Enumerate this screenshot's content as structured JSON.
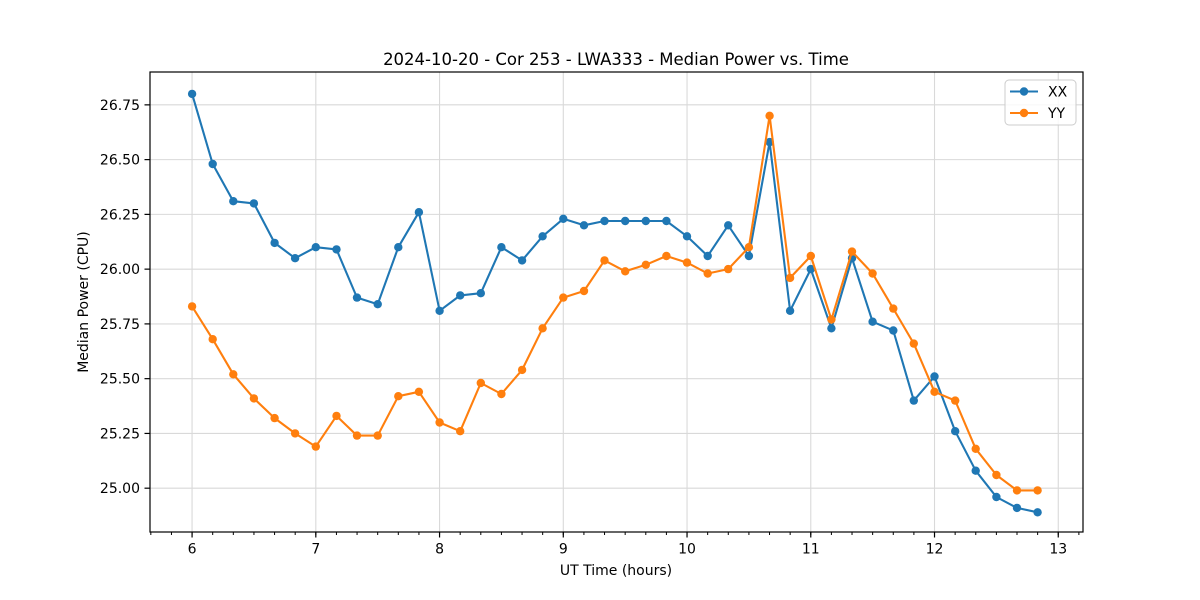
{
  "chart_data": {
    "type": "line",
    "title": "2024-10-20 - Cor 253 - LWA333 - Median Power vs. Time",
    "xlabel": "UT Time (hours)",
    "ylabel": "Median Power (CPU)",
    "xlim": [
      5.66,
      13.2
    ],
    "ylim": [
      24.8,
      26.9
    ],
    "xticks": [
      6,
      7,
      8,
      9,
      10,
      11,
      12,
      13
    ],
    "yticks": [
      25.0,
      25.25,
      25.5,
      25.75,
      26.0,
      26.25,
      26.5,
      26.75
    ],
    "ytick_decimals": 2,
    "minor_xtick_step_hours": 0.166667,
    "grid": true,
    "legend_position": "upper right",
    "x": [
      6.0,
      6.167,
      6.333,
      6.5,
      6.667,
      6.833,
      7.0,
      7.167,
      7.333,
      7.5,
      7.667,
      7.833,
      8.0,
      8.167,
      8.333,
      8.5,
      8.667,
      8.833,
      9.0,
      9.167,
      9.333,
      9.5,
      9.667,
      9.833,
      10.0,
      10.167,
      10.333,
      10.5,
      10.667,
      10.833,
      11.0,
      11.167,
      11.333,
      11.5,
      11.667,
      11.833,
      12.0,
      12.167,
      12.333,
      12.5,
      12.667,
      12.833
    ],
    "series": [
      {
        "name": "XX",
        "color": "#1f77b4",
        "values": [
          26.8,
          26.48,
          26.31,
          26.3,
          26.12,
          26.05,
          26.1,
          26.09,
          25.87,
          25.84,
          26.1,
          26.26,
          25.81,
          25.88,
          25.89,
          26.1,
          26.04,
          26.15,
          26.23,
          26.2,
          26.22,
          26.22,
          26.22,
          26.22,
          26.15,
          26.06,
          26.2,
          26.06,
          26.58,
          25.81,
          26.0,
          25.73,
          26.05,
          25.76,
          25.72,
          25.4,
          25.51,
          25.26,
          25.08,
          24.96,
          24.91,
          24.89
        ]
      },
      {
        "name": "YY",
        "color": "#ff7f0e",
        "values": [
          25.83,
          25.68,
          25.52,
          25.41,
          25.32,
          25.25,
          25.19,
          25.33,
          25.24,
          25.24,
          25.42,
          25.44,
          25.3,
          25.26,
          25.48,
          25.43,
          25.54,
          25.73,
          25.87,
          25.9,
          26.04,
          25.99,
          26.02,
          26.06,
          26.03,
          25.98,
          26.0,
          26.1,
          26.7,
          25.96,
          26.06,
          25.77,
          26.08,
          25.98,
          25.82,
          25.66,
          25.44,
          25.4,
          25.18,
          25.06,
          24.99,
          24.99
        ]
      }
    ],
    "style": {
      "grid_color": "#d9d9d9",
      "spine_color": "#000000",
      "background": "#ffffff",
      "legend_border_color": "#cccccc"
    }
  }
}
